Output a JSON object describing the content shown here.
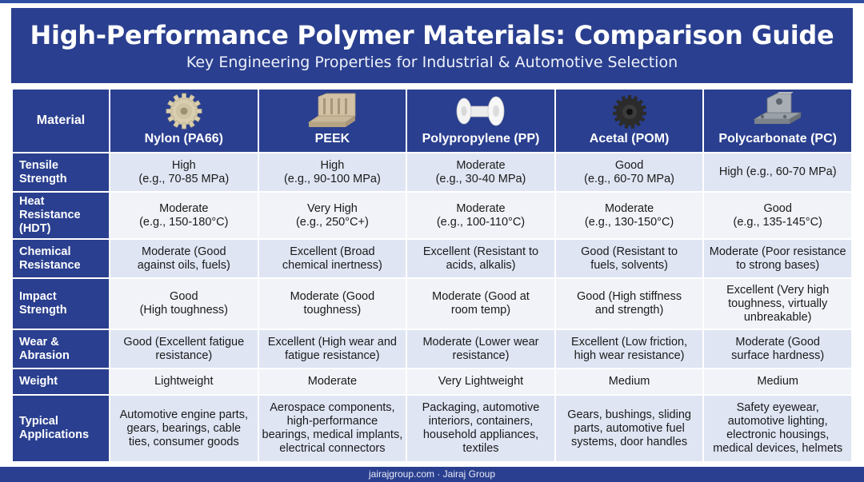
{
  "header": {
    "title": "High-Performance Polymer Materials: Comparison Guide",
    "subtitle": "Key Engineering Properties for Industrial & Automotive Selection"
  },
  "table": {
    "corner_label": "Material",
    "materials": [
      {
        "name": "Nylon (PA66)",
        "icon": "nylon-gear-icon",
        "color": "#d9cfb0"
      },
      {
        "name": "PEEK",
        "icon": "peek-bracket-icon",
        "color": "#c9b79a"
      },
      {
        "name": "Polypropylene (PP)",
        "icon": "pp-shaft-gear-icon",
        "color": "#f2f2f2"
      },
      {
        "name": "Acetal (POM)",
        "icon": "pom-black-gear-icon",
        "color": "#2b2b2b"
      },
      {
        "name": "Polycarbonate (PC)",
        "icon": "pc-bracket-icon",
        "color": "#8a8f96"
      }
    ],
    "rows": [
      {
        "label": [
          "Tensile",
          "Strength"
        ],
        "cells": [
          [
            "High",
            "(e.g., 70-85 MPa)"
          ],
          [
            "High",
            "(e.g., 90-100 MPa)"
          ],
          [
            "Moderate",
            "(e.g., 30-40 MPa)"
          ],
          [
            "Good",
            "(e.g., 60-70 MPa)"
          ],
          [
            "High (e.g., 60-70 MPa)"
          ]
        ]
      },
      {
        "label": [
          "Heat",
          "Resistance",
          "(HDT)"
        ],
        "cells": [
          [
            "Moderate",
            "(e.g., 150-180°C)"
          ],
          [
            "Very High",
            "(e.g., 250°C+)"
          ],
          [
            "Moderate",
            "(e.g., 100-110°C)"
          ],
          [
            "Moderate",
            "(e.g., 130-150°C)"
          ],
          [
            "Good",
            "(e.g., 135-145°C)"
          ]
        ]
      },
      {
        "label": [
          "Chemical",
          "Resistance"
        ],
        "cells": [
          [
            "Moderate (Good",
            "against oils, fuels)"
          ],
          [
            "Excellent (Broad",
            "chemical inertness)"
          ],
          [
            "Excellent (Resistant to",
            "acids, alkalis)"
          ],
          [
            "Good (Resistant to",
            "fuels, solvents)"
          ],
          [
            "Moderate (Poor resistance",
            "to strong bases)"
          ]
        ]
      },
      {
        "label": [
          "Impact",
          "Strength"
        ],
        "cells": [
          [
            "Good",
            "(High toughness)"
          ],
          [
            "Moderate (Good",
            "toughness)"
          ],
          [
            "Moderate (Good at",
            "room temp)"
          ],
          [
            "Good (High stiffness",
            "and strength)"
          ],
          [
            "Excellent (Very high",
            "toughness, virtually",
            "unbreakable)"
          ]
        ]
      },
      {
        "label": [
          "Wear &",
          "Abrasion"
        ],
        "cells": [
          [
            "Good (Excellent fatigue",
            "resistance)"
          ],
          [
            "Excellent (High wear and",
            "fatigue resistance)"
          ],
          [
            "Moderate (Lower wear",
            "resistance)"
          ],
          [
            "Excellent (Low friction,",
            "high wear resistance)"
          ],
          [
            "Moderate (Good",
            "surface hardness)"
          ]
        ]
      },
      {
        "label": [
          "Weight"
        ],
        "cells": [
          [
            "Lightweight"
          ],
          [
            "Moderate"
          ],
          [
            "Very Lightweight"
          ],
          [
            "Medium"
          ],
          [
            "Medium"
          ]
        ]
      },
      {
        "label": [
          "Typical",
          "Applications"
        ],
        "cells": [
          [
            "Automotive engine parts,",
            "gears, bearings, cable",
            "ties, consumer goods"
          ],
          [
            "Aerospace components,",
            "high-performance",
            "bearings, medical implants,",
            "electrical connectors"
          ],
          [
            "Packaging, automotive",
            "interiors, containers,",
            "household appliances,",
            "textiles"
          ],
          [
            "Gears, bushings, sliding",
            "parts, automotive fuel",
            "systems, door handles"
          ],
          [
            "Safety eyewear,",
            "automotive lighting,",
            "electronic housings,",
            "medical devices, helmets"
          ]
        ]
      }
    ]
  },
  "footer": {
    "text": "jairajgroup.com · Jairaj Group"
  },
  "colors": {
    "navy": "#2a3f8f",
    "row_odd": "#dfe5f3",
    "row_even": "#f1f3f8"
  }
}
